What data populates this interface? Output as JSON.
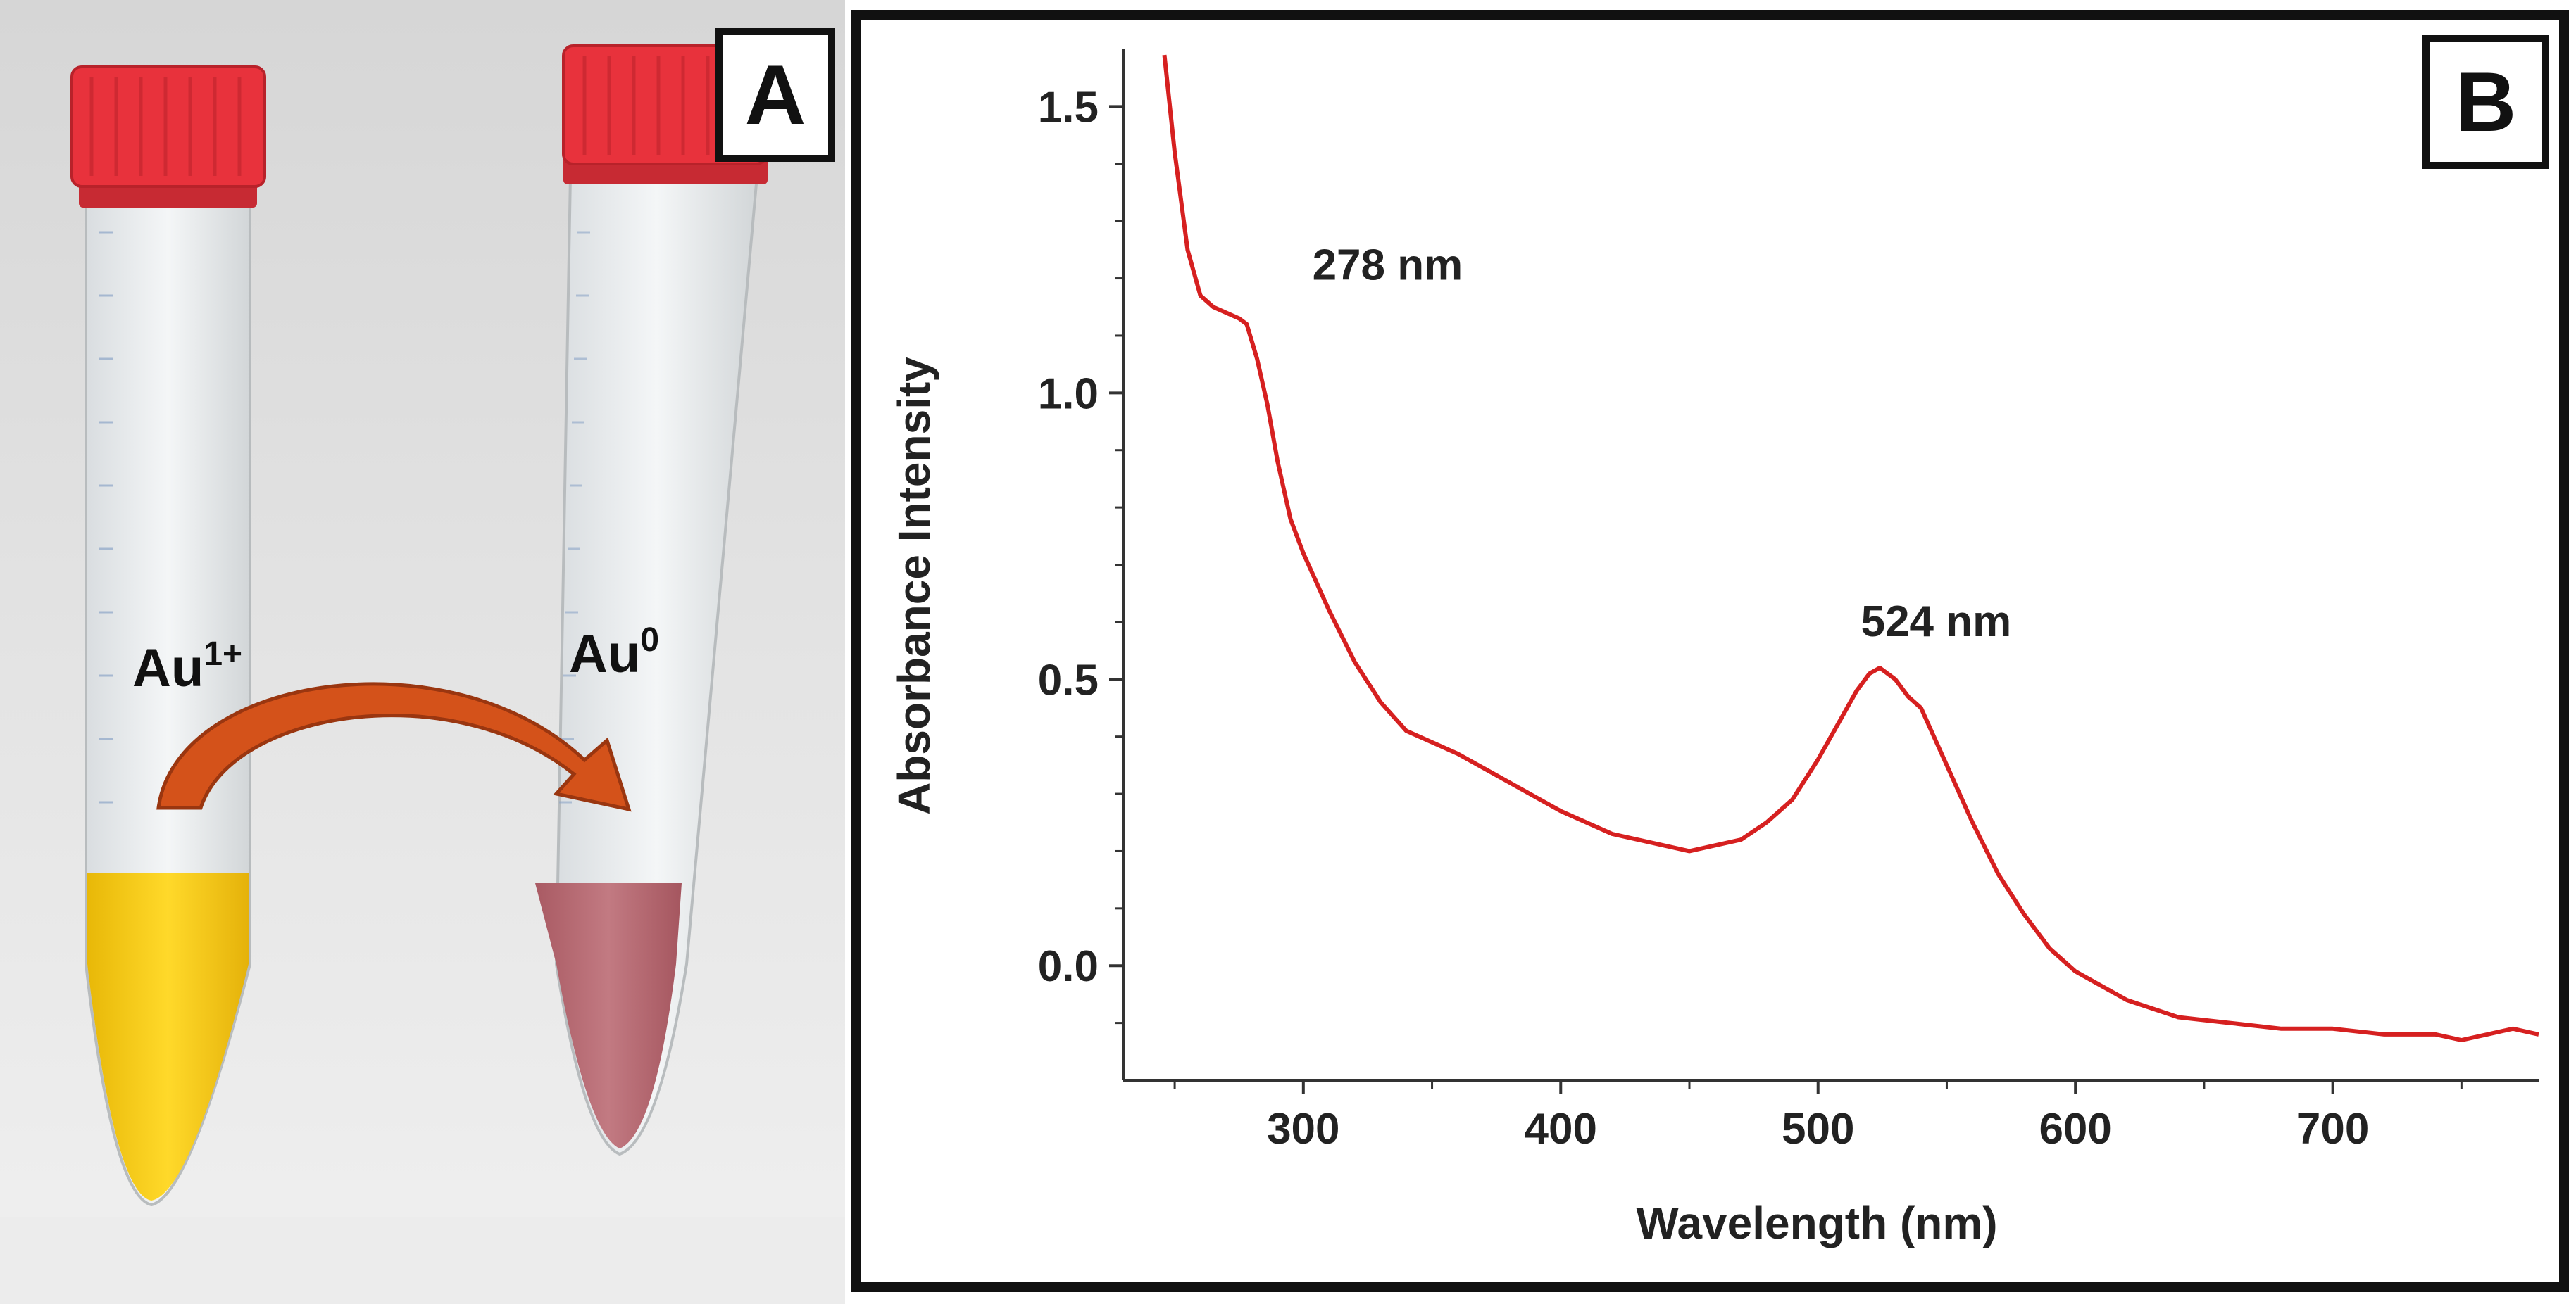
{
  "panel_a": {
    "label": "A",
    "tube_left_label": "Au",
    "tube_left_superscript": "1+",
    "tube_right_label": "Au",
    "tube_right_superscript": "0",
    "colors": {
      "cap": "#e8323c",
      "left_solution": "#f4cc12",
      "right_solution": "#b86a72",
      "arrow": "#d4521a"
    }
  },
  "panel_b": {
    "label": "B"
  },
  "chart_data": {
    "type": "line",
    "xlabel": "Wavelength (nm)",
    "ylabel": "Absorbance Intensity",
    "xlim": [
      230,
      780
    ],
    "ylim": [
      -0.2,
      1.6
    ],
    "xticks": [
      300,
      400,
      500,
      600,
      700
    ],
    "yticks": [
      0.0,
      0.5,
      1.0,
      1.5
    ],
    "xtick_labels": [
      "300",
      "400",
      "500",
      "600",
      "700"
    ],
    "ytick_labels": [
      "0.0",
      "0.5",
      "1.0",
      "1.5"
    ],
    "line_color": "#d62020",
    "grid": false,
    "annotations": [
      {
        "text": "278 nm",
        "x": 278,
        "y": 1.13
      },
      {
        "text": "524 nm",
        "x": 524,
        "y": 0.52
      }
    ],
    "series": [
      {
        "x": [
          246,
          250,
          255,
          260,
          265,
          270,
          275,
          278,
          282,
          286,
          290,
          295,
          300,
          310,
          320,
          330,
          340,
          350,
          360,
          380,
          400,
          420,
          440,
          450,
          460,
          470,
          480,
          485,
          490,
          500,
          510,
          515,
          520,
          524,
          530,
          535,
          540,
          545,
          550,
          560,
          570,
          580,
          590,
          600,
          620,
          640,
          660,
          680,
          700,
          720,
          740,
          750,
          760,
          770,
          780
        ],
        "y": [
          1.59,
          1.42,
          1.25,
          1.17,
          1.15,
          1.14,
          1.13,
          1.12,
          1.06,
          0.98,
          0.88,
          0.78,
          0.72,
          0.62,
          0.53,
          0.46,
          0.41,
          0.39,
          0.37,
          0.32,
          0.27,
          0.23,
          0.21,
          0.2,
          0.21,
          0.22,
          0.25,
          0.27,
          0.29,
          0.36,
          0.44,
          0.48,
          0.51,
          0.52,
          0.5,
          0.47,
          0.45,
          0.4,
          0.35,
          0.25,
          0.16,
          0.09,
          0.03,
          -0.01,
          -0.06,
          -0.09,
          -0.1,
          -0.11,
          -0.11,
          -0.12,
          -0.12,
          -0.13,
          -0.12,
          -0.11,
          -0.12
        ]
      }
    ]
  }
}
